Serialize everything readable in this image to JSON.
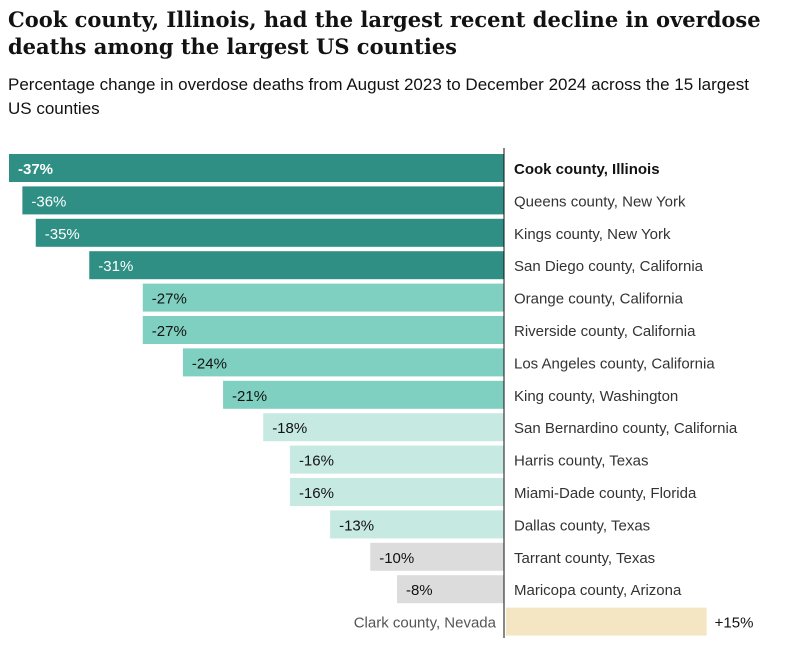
{
  "chart_data": {
    "type": "bar",
    "orientation": "horizontal",
    "title": "Cook county, Illinois, had the largest recent decline in overdose deaths among the largest US counties",
    "subtitle": "Percentage change in overdose deaths from August 2023 to December 2024 across the 15 largest US counties",
    "xlabel": "",
    "ylabel": "",
    "xlim": [
      -37,
      15
    ],
    "unit": "%",
    "categories": [
      "Cook county, Illinois",
      "Queens county, New York",
      "Kings county, New York",
      "San Diego county, California",
      "Orange county, California",
      "Riverside county, California",
      "Los Angeles county, California",
      "King county, Washington",
      "San Bernardino county, California",
      "Harris county, Texas",
      "Miami-Dade county, Florida",
      "Dallas county, Texas",
      "Tarrant county, Texas",
      "Maricopa county, Arizona",
      "Clark county, Nevada"
    ],
    "values": [
      -37,
      -36,
      -35,
      -31,
      -27,
      -27,
      -24,
      -21,
      -18,
      -16,
      -16,
      -13,
      -10,
      -8,
      15
    ],
    "value_labels": [
      "-37%",
      "-36%",
      "-35%",
      "-31%",
      "-27%",
      "-27%",
      "-24%",
      "-21%",
      "-18%",
      "-16%",
      "-16%",
      "-13%",
      "-10%",
      "-8%",
      "+15%"
    ],
    "highlighted_category": "Cook county, Illinois",
    "colors": {
      "large_decline": "#2f8f84",
      "medium_decline": "#7fd0c0",
      "small_decline": "#c6e9e1",
      "slight_decline": "#dcdcdc",
      "increase": "#f5e6c3",
      "axis": "#121212",
      "text": "#121212",
      "label_on_dark": "#ffffff",
      "label_muted": "#555555"
    }
  }
}
